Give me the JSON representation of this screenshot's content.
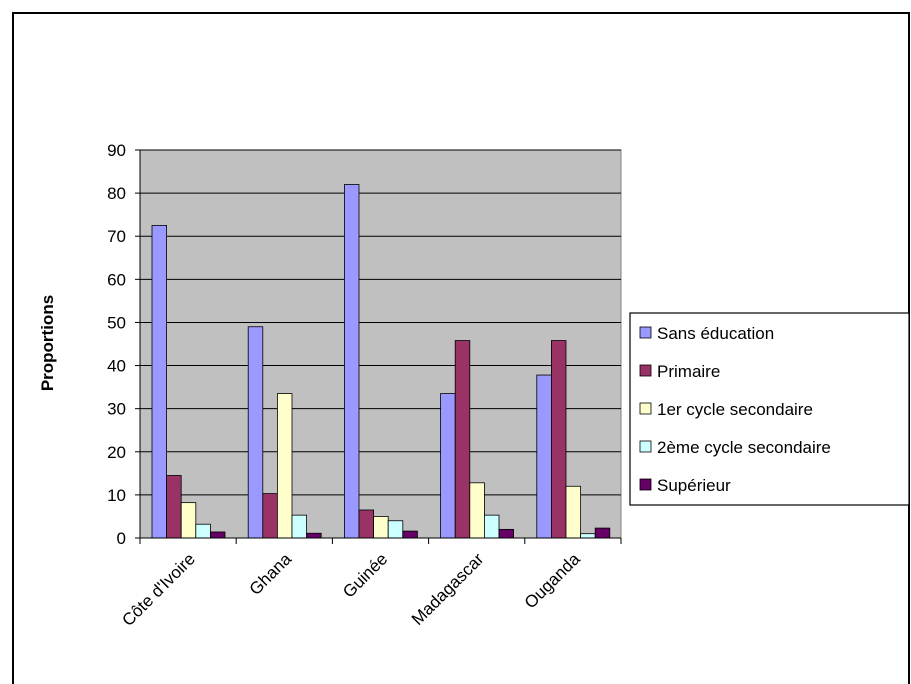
{
  "chart_data": {
    "type": "bar",
    "categories": [
      "Côte d'Ivoire",
      "Ghana",
      "Guinée",
      "Madagascar",
      "Ouganda"
    ],
    "series": [
      {
        "name": "Sans éducation",
        "color": "#9999FF",
        "values": [
          72.5,
          49,
          82,
          33.5,
          37.8
        ]
      },
      {
        "name": "Primaire",
        "color": "#993366",
        "values": [
          14.5,
          10.3,
          6.5,
          45.8,
          45.8
        ]
      },
      {
        "name": "1er cycle secondaire",
        "color": "#FFFFCC",
        "values": [
          8.2,
          33.5,
          5,
          12.8,
          12
        ]
      },
      {
        "name": "2ème cycle secondaire",
        "color": "#CCFFFF",
        "values": [
          3.2,
          5.3,
          4,
          5.3,
          1
        ]
      },
      {
        "name": "Supérieur",
        "color": "#660066",
        "values": [
          1.4,
          1.1,
          1.6,
          2,
          2.3
        ]
      }
    ],
    "ylabel": "Proportions",
    "ylim": [
      0,
      90
    ],
    "yticks": [
      0,
      10,
      20,
      30,
      40,
      50,
      60,
      70,
      80,
      90
    ],
    "grid": true,
    "plot_background": "#C0C0C0",
    "legend_position": "right"
  }
}
